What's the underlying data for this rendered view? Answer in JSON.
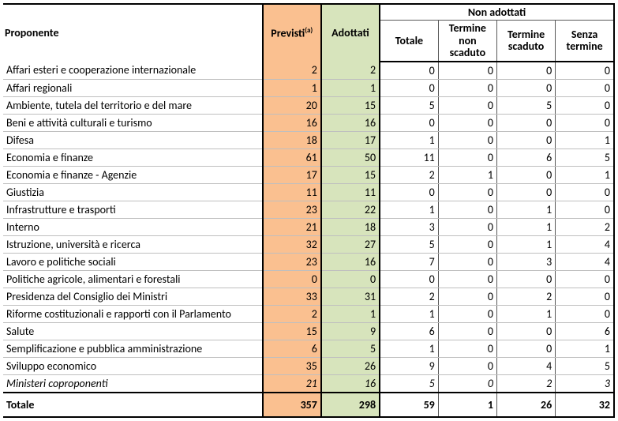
{
  "colors": {
    "orange": "#fac090",
    "green": "#d7e4bc",
    "border_strong": "#000000",
    "border_thin": "#595959",
    "row_line": "#bfbfbf",
    "background": "#ffffff"
  },
  "header": {
    "proponente": "Proponente",
    "previsti": "Previsti",
    "previsti_sup": "(a)",
    "adottati": "Adottati",
    "non_adottati_group": "Non adottati",
    "totale": "Totale",
    "termine_non_scaduto": "Termine non scaduto",
    "termine_scaduto": "Termine scaduto",
    "senza_termine": "Senza termine"
  },
  "rows": [
    {
      "label": "Affari esteri e cooperazione internazionale",
      "previsti": 2,
      "adottati": 2,
      "totale": 0,
      "tns": 0,
      "ts": 0,
      "st": 0,
      "italic": false
    },
    {
      "label": "Affari regionali",
      "previsti": 1,
      "adottati": 1,
      "totale": 0,
      "tns": 0,
      "ts": 0,
      "st": 0,
      "italic": false
    },
    {
      "label": "Ambiente, tutela del territorio e del mare",
      "previsti": 20,
      "adottati": 15,
      "totale": 5,
      "tns": 0,
      "ts": 5,
      "st": 0,
      "italic": false
    },
    {
      "label": "Beni e attività culturali e turismo",
      "previsti": 16,
      "adottati": 16,
      "totale": 0,
      "tns": 0,
      "ts": 0,
      "st": 0,
      "italic": false
    },
    {
      "label": "Difesa",
      "previsti": 18,
      "adottati": 17,
      "totale": 1,
      "tns": 0,
      "ts": 0,
      "st": 1,
      "italic": false
    },
    {
      "label": "Economia e finanze",
      "previsti": 61,
      "adottati": 50,
      "totale": 11,
      "tns": 0,
      "ts": 6,
      "st": 5,
      "italic": false
    },
    {
      "label": "Economia e finanze - Agenzie",
      "previsti": 17,
      "adottati": 15,
      "totale": 2,
      "tns": 1,
      "ts": 0,
      "st": 1,
      "italic": false
    },
    {
      "label": "Giustizia",
      "previsti": 11,
      "adottati": 11,
      "totale": 0,
      "tns": 0,
      "ts": 0,
      "st": 0,
      "italic": false
    },
    {
      "label": "Infrastrutture e trasporti",
      "previsti": 23,
      "adottati": 22,
      "totale": 1,
      "tns": 0,
      "ts": 1,
      "st": 0,
      "italic": false
    },
    {
      "label": "Interno",
      "previsti": 21,
      "adottati": 18,
      "totale": 3,
      "tns": 0,
      "ts": 1,
      "st": 2,
      "italic": false
    },
    {
      "label": "Istruzione, università e ricerca",
      "previsti": 32,
      "adottati": 27,
      "totale": 5,
      "tns": 0,
      "ts": 1,
      "st": 4,
      "italic": false
    },
    {
      "label": "Lavoro e politiche sociali",
      "previsti": 23,
      "adottati": 16,
      "totale": 7,
      "tns": 0,
      "ts": 3,
      "st": 4,
      "italic": false
    },
    {
      "label": "Politiche agricole, alimentari e forestali",
      "previsti": 0,
      "adottati": 0,
      "totale": 0,
      "tns": 0,
      "ts": 0,
      "st": 0,
      "italic": false
    },
    {
      "label": "Presidenza del Consiglio dei Ministri",
      "previsti": 33,
      "adottati": 31,
      "totale": 2,
      "tns": 0,
      "ts": 2,
      "st": 0,
      "italic": false
    },
    {
      "label": "Riforme costituzionali e rapporti con il Parlamento",
      "previsti": 2,
      "adottati": 1,
      "totale": 1,
      "tns": 0,
      "ts": 1,
      "st": 0,
      "italic": false
    },
    {
      "label": "Salute",
      "previsti": 15,
      "adottati": 9,
      "totale": 6,
      "tns": 0,
      "ts": 0,
      "st": 6,
      "italic": false
    },
    {
      "label": "Semplificazione e pubblica amministrazione",
      "previsti": 6,
      "adottati": 5,
      "totale": 1,
      "tns": 0,
      "ts": 0,
      "st": 1,
      "italic": false
    },
    {
      "label": "Sviluppo economico",
      "previsti": 35,
      "adottati": 26,
      "totale": 9,
      "tns": 0,
      "ts": 4,
      "st": 5,
      "italic": false
    },
    {
      "label": "Ministeri coproponenti",
      "previsti": 21,
      "adottati": 16,
      "totale": 5,
      "tns": 0,
      "ts": 2,
      "st": 3,
      "italic": true
    }
  ],
  "total": {
    "label": "Totale",
    "previsti": 357,
    "adottati": 298,
    "totale": 59,
    "tns": 1,
    "ts": 26,
    "st": 32
  }
}
